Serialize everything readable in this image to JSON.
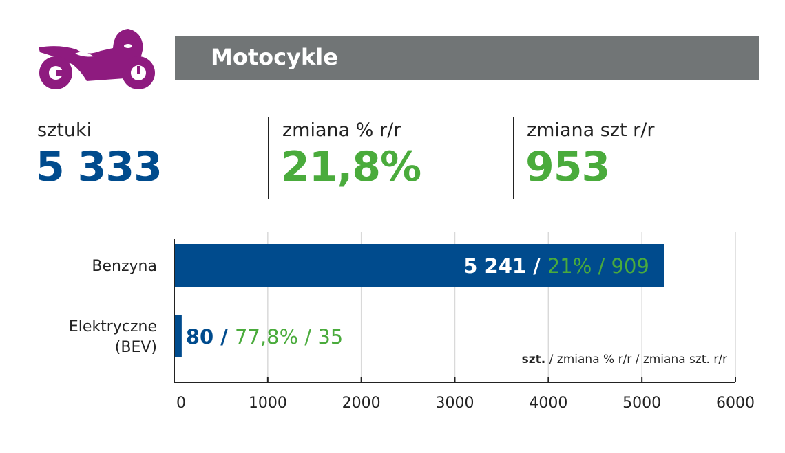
{
  "header": {
    "title": "Motocykle",
    "icon": "motorcycle-icon",
    "icon_color": "#8e1b7f",
    "bar_color": "#717576"
  },
  "stats": [
    {
      "label": "sztuki",
      "value": "5 333",
      "color": "#004b8d"
    },
    {
      "label": "zmiana % r/r",
      "value": "21,8%",
      "color": "#4aab3c"
    },
    {
      "label": "zmiana szt r/r",
      "value": "953",
      "color": "#4aab3c"
    }
  ],
  "chart_data": {
    "type": "bar",
    "orientation": "horizontal",
    "categories": [
      "Benzyna",
      "Elektryczne (BEV)"
    ],
    "category_lines": [
      [
        "Benzyna"
      ],
      [
        "Elektryczne",
        "(BEV)"
      ]
    ],
    "values": [
      5241,
      80
    ],
    "labels": [
      {
        "units": "5 241",
        "sep": " / ",
        "rest": "21% / 909"
      },
      {
        "units": "80",
        "sep": " / ",
        "rest": "77,8% / 35"
      }
    ],
    "xlim": [
      0,
      6000
    ],
    "xticks": [
      "0",
      "1000",
      "2000",
      "3000",
      "4000",
      "5000",
      "6000"
    ],
    "grid": true,
    "bar_color": "#004b8d",
    "legend": {
      "bold": "szt.",
      "rest": " / zmiana % r/r / zmiana szt. r/r",
      "placement": "bottom-right"
    }
  }
}
